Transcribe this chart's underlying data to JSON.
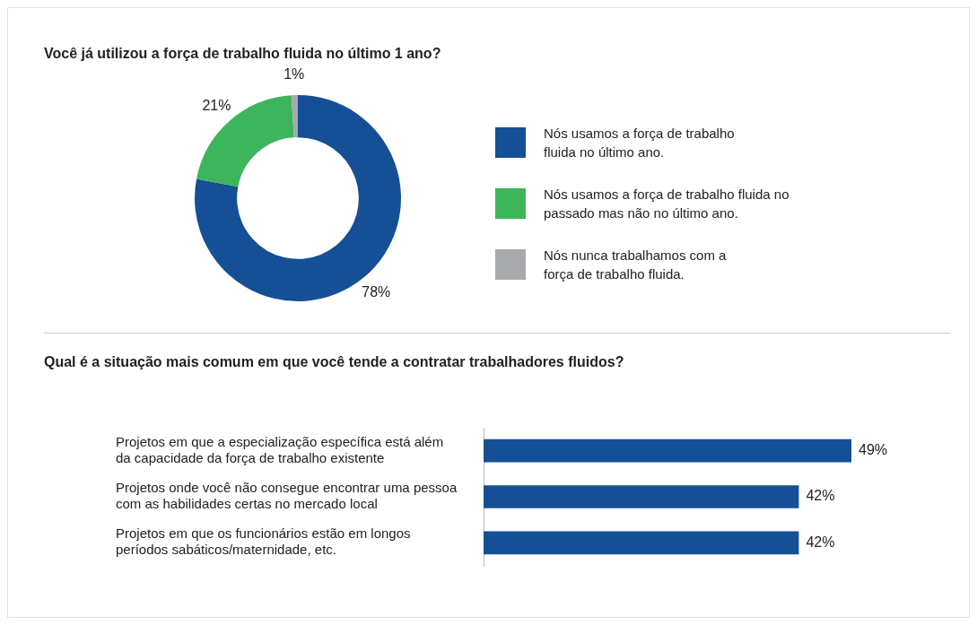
{
  "chart_data": [
    {
      "type": "donut",
      "title": "Você já utilizou a força de trabalho fluida no último 1 ano?",
      "categories": [
        "Nós usamos a força de trabalho fluida no último ano.",
        "Nós usamos a força de trabalho fluida no passado mas não no último ano.",
        "Nós nunca trabalhamos com a força de trabalho fluida."
      ],
      "values": [
        78,
        21,
        1
      ],
      "colors": [
        "#154f96",
        "#3db55d",
        "#a7a9ac"
      ],
      "value_labels": [
        "78%",
        "21%",
        "1%"
      ],
      "legend": "right"
    },
    {
      "type": "bar",
      "orientation": "horizontal",
      "title": "Qual é a situação mais comum em que você tende a contratar trabalhadores fluidos?",
      "categories": [
        "Projetos em que a especialização específica está além da capacidade da força de trabalho existente",
        "Projetos onde você não consegue encontrar uma pessoa com as habilidades certas no mercado local",
        "Projetos em que os funcionários estão em longos períodos sabáticos/maternidade, etc."
      ],
      "values": [
        49,
        42,
        42
      ],
      "color": "#154f96",
      "value_labels": [
        "49%",
        "42%",
        "42%"
      ]
    }
  ]
}
